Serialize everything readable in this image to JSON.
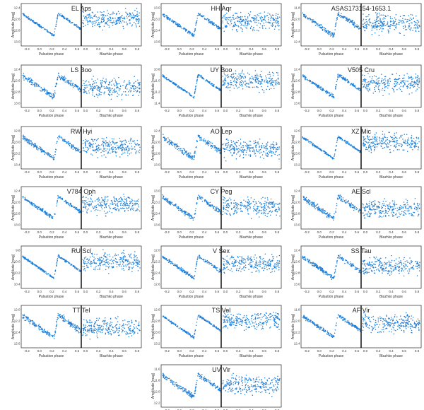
{
  "figure": {
    "y_axis_label": "Amplitude [mag]",
    "x_label_left": "Pulsation phase",
    "x_label_right": "Blazhko phase",
    "marker_color": "#1f7ed6",
    "title_color_default": "#222222",
    "title_color_highlight": "#d9822b",
    "x_ticks_left": [
      "-0.2",
      "0.0",
      "0.2",
      "0.4",
      "0.6"
    ],
    "x_ticks_right": [
      "0.0",
      "0.2",
      "0.4",
      "0.6",
      "0.8"
    ]
  },
  "panels": [
    {
      "name": "EL Aps",
      "highlight": false,
      "y_ticks": [
        "12.4",
        "12.6",
        "12.8",
        "13.0"
      ]
    },
    {
      "name": "HH Aqr",
      "highlight": false,
      "y_ticks": [
        "13.0",
        "13.2",
        "13.4",
        "13.6"
      ]
    },
    {
      "name": "ASAS173154-1653.1",
      "highlight": false,
      "y_ticks": [
        "11.8",
        "12.0",
        "12.2",
        "12.4"
      ]
    },
    {
      "name": "LS Boo",
      "highlight": false,
      "y_ticks": [
        "12.4",
        "12.6",
        "12.8",
        "13.0"
      ]
    },
    {
      "name": "UY Boo",
      "highlight": true,
      "y_ticks": [
        "10.8",
        "11.0",
        "11.2",
        "11.4"
      ]
    },
    {
      "name": "V505 Cru",
      "highlight": false,
      "y_ticks": [
        "12.4",
        "12.6",
        "12.8",
        "13.0"
      ]
    },
    {
      "name": "RW Hyi",
      "highlight": false,
      "y_ticks": [
        "12.8",
        "13.0",
        "13.2",
        "13.4"
      ]
    },
    {
      "name": "AO Lep",
      "highlight": false,
      "y_ticks": [
        "12.4",
        "12.6",
        "12.8",
        "13.0"
      ]
    },
    {
      "name": "XZ Mic",
      "highlight": false,
      "y_ticks": [
        "12.6",
        "12.8",
        "13.0",
        "13.2"
      ]
    },
    {
      "name": "V784 Oph",
      "highlight": false,
      "y_ticks": [
        "12.4",
        "12.6",
        "12.8",
        "13.0"
      ]
    },
    {
      "name": "CY Peg",
      "highlight": false,
      "y_ticks": [
        "13.0",
        "13.2",
        "13.4",
        "13.6"
      ]
    },
    {
      "name": "AE Scl",
      "highlight": false,
      "y_ticks": [
        "12.4",
        "12.6",
        "12.8",
        "13.0"
      ]
    },
    {
      "name": "RU Scl",
      "highlight": false,
      "y_ticks": [
        "9.8",
        "10.0",
        "10.2",
        "10.4"
      ]
    },
    {
      "name": "V Sex",
      "highlight": false,
      "y_ticks": [
        "12.0",
        "12.2",
        "12.4",
        "12.6"
      ]
    },
    {
      "name": "SS Tau",
      "highlight": false,
      "y_ticks": [
        "12.4",
        "12.6",
        "12.8",
        "13.0"
      ]
    },
    {
      "name": "TT Tel",
      "highlight": true,
      "y_ticks": [
        "12.0",
        "12.2",
        "12.4",
        "12.6"
      ]
    },
    {
      "name": "TS Vel",
      "highlight": false,
      "y_ticks": [
        "12.6",
        "12.8",
        "13.0",
        "13.2"
      ]
    },
    {
      "name": "AF Vir",
      "highlight": false,
      "y_ticks": [
        "11.8",
        "12.0",
        "12.2",
        "12.4"
      ]
    },
    {
      "name": "UV Vir",
      "highlight": false,
      "y_ticks": [
        "11.6",
        "11.8",
        "12.0",
        "12.2"
      ]
    }
  ],
  "chart_data": {
    "type": "scatter",
    "description_fields_note": "19 panels; each shows a phased light curve (left half) and Blazhko-phase residuals (right half).",
    "series_per_panel": [
      "Pulsation phase",
      "Blazhko phase"
    ]
  }
}
